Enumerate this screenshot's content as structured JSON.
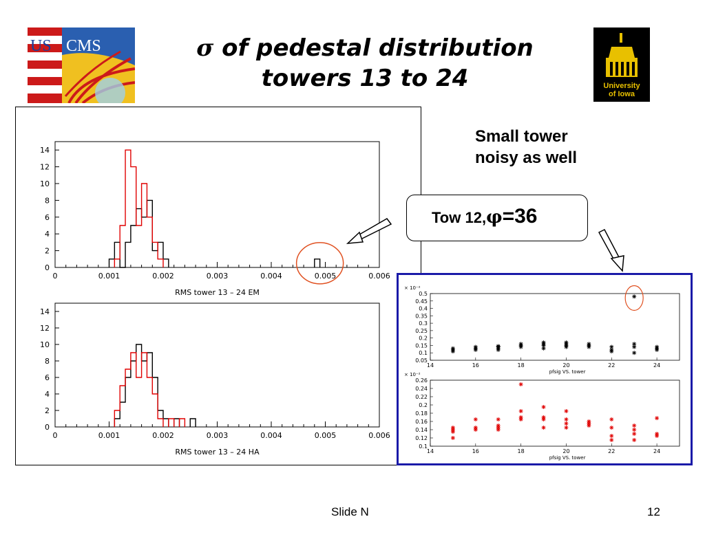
{
  "slide": {
    "title_symbol": "σ",
    "title_line1": " of pedestal distribution",
    "title_line2": "towers 13 to 24",
    "note_line1": "Small tower",
    "note_line2": "noisy as well",
    "callout_prefix": "Tow 12,",
    "callout_symbol": "φ",
    "callout_value": "=36",
    "footer_center": "Slide N",
    "footer_page": "12"
  },
  "logos": {
    "left_text_us": "US",
    "left_text_cms": "CMS",
    "right_text1": "University",
    "right_text2": "of Iowa"
  },
  "colors": {
    "black_series": "#000000",
    "red_series": "#e00000",
    "panel_border": "#1a1aa8",
    "highlight_circle": "#e05020"
  },
  "chart_data": [
    {
      "type": "histogram",
      "xlabel": "RMS tower 13 – 24 EM",
      "xlim": [
        0,
        0.006
      ],
      "ylim": [
        0,
        15
      ],
      "x_ticks": [
        0,
        0.001,
        0.002,
        0.003,
        0.004,
        0.005,
        0.006
      ],
      "x_tick_labels": [
        "0",
        "0.001",
        "0.002",
        "0.003",
        "0.004",
        "0.005",
        "0.006"
      ],
      "y_ticks": [
        0,
        2,
        4,
        6,
        8,
        10,
        12,
        14
      ],
      "bin_width": 0.0001,
      "series": [
        {
          "color": "black",
          "bins": [
            [
              0.001,
              1
            ],
            [
              0.0011,
              3
            ],
            [
              0.0012,
              0
            ],
            [
              0.0013,
              3
            ],
            [
              0.0014,
              5
            ],
            [
              0.0015,
              7
            ],
            [
              0.0016,
              6
            ],
            [
              0.0017,
              8
            ],
            [
              0.0018,
              2
            ],
            [
              0.0019,
              3
            ],
            [
              0.002,
              1
            ],
            [
              0.0048,
              1
            ]
          ]
        },
        {
          "color": "red",
          "bins": [
            [
              0.0011,
              1
            ],
            [
              0.0012,
              5
            ],
            [
              0.0013,
              14
            ],
            [
              0.0014,
              12
            ],
            [
              0.0015,
              5
            ],
            [
              0.0016,
              10
            ],
            [
              0.0017,
              6
            ],
            [
              0.0018,
              3
            ],
            [
              0.0019,
              1
            ]
          ]
        }
      ],
      "annotation": "circle around outlier bin near 0.0048"
    },
    {
      "type": "histogram",
      "xlabel": "RMS tower 13 – 24 HA",
      "xlim": [
        0,
        0.006
      ],
      "ylim": [
        0,
        15
      ],
      "x_ticks": [
        0,
        0.001,
        0.002,
        0.003,
        0.004,
        0.005,
        0.006
      ],
      "x_tick_labels": [
        "0",
        "0.001",
        "0.002",
        "0.003",
        "0.004",
        "0.005",
        "0.006"
      ],
      "y_ticks": [
        0,
        2,
        4,
        6,
        8,
        10,
        12,
        14
      ],
      "bin_width": 0.0001,
      "series": [
        {
          "color": "black",
          "bins": [
            [
              0.0011,
              1
            ],
            [
              0.0012,
              3
            ],
            [
              0.0013,
              6
            ],
            [
              0.0014,
              8
            ],
            [
              0.0015,
              10
            ],
            [
              0.0016,
              8
            ],
            [
              0.0017,
              9
            ],
            [
              0.0018,
              6
            ],
            [
              0.0019,
              2
            ],
            [
              0.002,
              1
            ],
            [
              0.0022,
              1
            ],
            [
              0.0025,
              1
            ]
          ]
        },
        {
          "color": "red",
          "bins": [
            [
              0.0011,
              2
            ],
            [
              0.0012,
              5
            ],
            [
              0.0013,
              7
            ],
            [
              0.0014,
              9
            ],
            [
              0.0015,
              6
            ],
            [
              0.0016,
              9
            ],
            [
              0.0017,
              6
            ],
            [
              0.0018,
              4
            ],
            [
              0.0019,
              1
            ],
            [
              0.0021,
              1
            ],
            [
              0.0023,
              1
            ]
          ]
        }
      ]
    },
    {
      "type": "scatter",
      "xlabel": "pfsig VS. tower",
      "y_multiplier": "× 10⁻²",
      "xlim": [
        14,
        25
      ],
      "ylim": [
        0.05,
        0.5
      ],
      "x_ticks": [
        14,
        16,
        18,
        20,
        22,
        24
      ],
      "y_ticks": [
        0.05,
        0.1,
        0.15,
        0.2,
        0.25,
        0.3,
        0.35,
        0.4,
        0.45,
        0.5
      ],
      "y_tick_labels": [
        "0.05",
        "0.1",
        "0.15",
        "0.2",
        "0.25",
        "0.3",
        "0.35",
        "0.4",
        "0.45",
        "0.5"
      ],
      "color": "black",
      "points": [
        [
          15,
          0.13
        ],
        [
          15,
          0.12
        ],
        [
          15,
          0.11
        ],
        [
          16,
          0.14
        ],
        [
          16,
          0.13
        ],
        [
          16,
          0.12
        ],
        [
          17,
          0.14
        ],
        [
          17,
          0.13
        ],
        [
          17,
          0.12
        ],
        [
          17,
          0.145
        ],
        [
          18,
          0.15
        ],
        [
          18,
          0.16
        ],
        [
          18,
          0.14
        ],
        [
          19,
          0.16
        ],
        [
          19,
          0.15
        ],
        [
          19,
          0.17
        ],
        [
          19,
          0.13
        ],
        [
          20,
          0.16
        ],
        [
          20,
          0.17
        ],
        [
          20,
          0.15
        ],
        [
          20,
          0.14
        ],
        [
          21,
          0.16
        ],
        [
          21,
          0.15
        ],
        [
          21,
          0.14
        ],
        [
          22,
          0.14
        ],
        [
          22,
          0.12
        ],
        [
          22,
          0.11
        ],
        [
          23,
          0.16
        ],
        [
          23,
          0.14
        ],
        [
          23,
          0.1
        ],
        [
          23,
          0.48
        ],
        [
          24,
          0.14
        ],
        [
          24,
          0.13
        ],
        [
          24,
          0.12
        ]
      ],
      "annotation": "circle around outlier point at tower 23"
    },
    {
      "type": "scatter",
      "xlabel": "pfsig VS. tower",
      "y_multiplier": "× 10⁻²",
      "xlim": [
        14,
        25
      ],
      "ylim": [
        0.1,
        0.26
      ],
      "x_ticks": [
        14,
        16,
        18,
        20,
        22,
        24
      ],
      "y_ticks": [
        0.1,
        0.12,
        0.14,
        0.16,
        0.18,
        0.2,
        0.22,
        0.24,
        0.26
      ],
      "y_tick_labels": [
        "0.1",
        "0.12",
        "0.14",
        "0.16",
        "0.18",
        "0.2",
        "0.22",
        "0.24",
        "0.26"
      ],
      "color": "red",
      "points": [
        [
          15,
          0.145
        ],
        [
          15,
          0.14
        ],
        [
          15,
          0.135
        ],
        [
          15,
          0.12
        ],
        [
          16,
          0.165
        ],
        [
          16,
          0.145
        ],
        [
          16,
          0.14
        ],
        [
          17,
          0.165
        ],
        [
          17,
          0.15
        ],
        [
          17,
          0.145
        ],
        [
          17,
          0.14
        ],
        [
          18,
          0.25
        ],
        [
          18,
          0.185
        ],
        [
          18,
          0.17
        ],
        [
          18,
          0.165
        ],
        [
          19,
          0.195
        ],
        [
          19,
          0.17
        ],
        [
          19,
          0.165
        ],
        [
          19,
          0.145
        ],
        [
          20,
          0.185
        ],
        [
          20,
          0.165
        ],
        [
          20,
          0.155
        ],
        [
          20,
          0.145
        ],
        [
          21,
          0.16
        ],
        [
          21,
          0.155
        ],
        [
          21,
          0.15
        ],
        [
          22,
          0.165
        ],
        [
          22,
          0.145
        ],
        [
          22,
          0.125
        ],
        [
          22,
          0.115
        ],
        [
          23,
          0.15
        ],
        [
          23,
          0.14
        ],
        [
          23,
          0.13
        ],
        [
          23,
          0.115
        ],
        [
          24,
          0.168
        ],
        [
          24,
          0.13
        ],
        [
          24,
          0.125
        ]
      ]
    }
  ]
}
